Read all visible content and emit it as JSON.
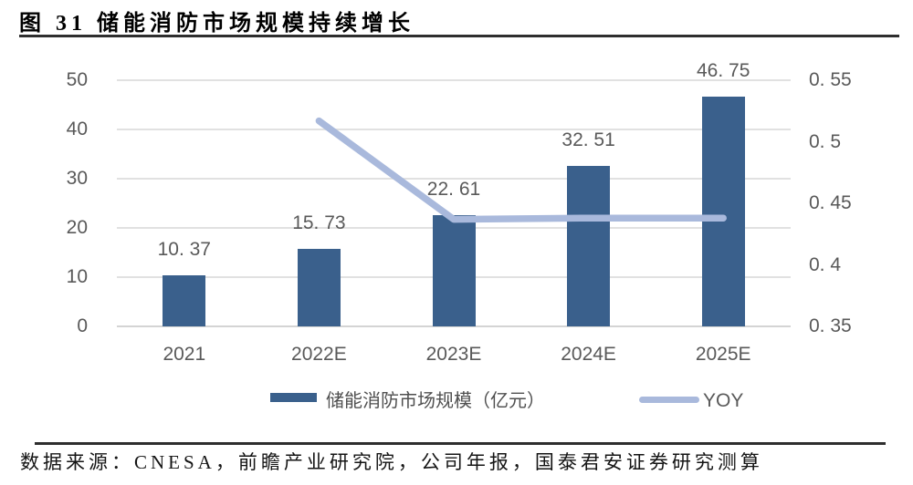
{
  "title": "图 31 储能消防市场规模持续增长",
  "source_note": "数据来源：CNESA，前瞻产业研究院，公司年报，国泰君安证券研究测算",
  "colors": {
    "bar": "#3A608C",
    "line": "#A9B9DC",
    "grid": "#E1E1E1",
    "axis_text": "#595959",
    "rule": "#2E2E2E"
  },
  "chart_data": {
    "type": "bar",
    "subtype": "combo-bar-line",
    "title": "图 31 储能消防市场规模持续增长",
    "categories": [
      "2021",
      "2022E",
      "2023E",
      "2024E",
      "2025E"
    ],
    "series": [
      {
        "name": "储能消防市场规模（亿元）",
        "type": "bar",
        "axis": "left",
        "values": [
          10.37,
          15.73,
          22.61,
          32.51,
          46.75
        ],
        "value_labels": [
          "10. 37",
          "15. 73",
          "22. 61",
          "32. 51",
          "46. 75"
        ]
      },
      {
        "name": "YOY",
        "type": "line",
        "axis": "right",
        "values": [
          null,
          0.517,
          0.437,
          0.438,
          0.438
        ]
      }
    ],
    "left_axis": {
      "min": 0,
      "max": 50,
      "tick_values": [
        0,
        10,
        20,
        30,
        40,
        50
      ],
      "tick_labels": [
        "0",
        "10",
        "20",
        "30",
        "40",
        "50"
      ]
    },
    "right_axis": {
      "min": 0.35,
      "max": 0.55,
      "tick_values": [
        0.35,
        0.4,
        0.45,
        0.5,
        0.55
      ],
      "tick_labels": [
        "0. 35",
        "0. 4",
        "0. 45",
        "0. 5",
        "0. 55"
      ]
    },
    "grid": true,
    "legend_position": "bottom",
    "legend": [
      {
        "label": "储能消防市场规模（亿元）",
        "swatch": "bar"
      },
      {
        "label": "YOY",
        "swatch": "line"
      }
    ]
  }
}
